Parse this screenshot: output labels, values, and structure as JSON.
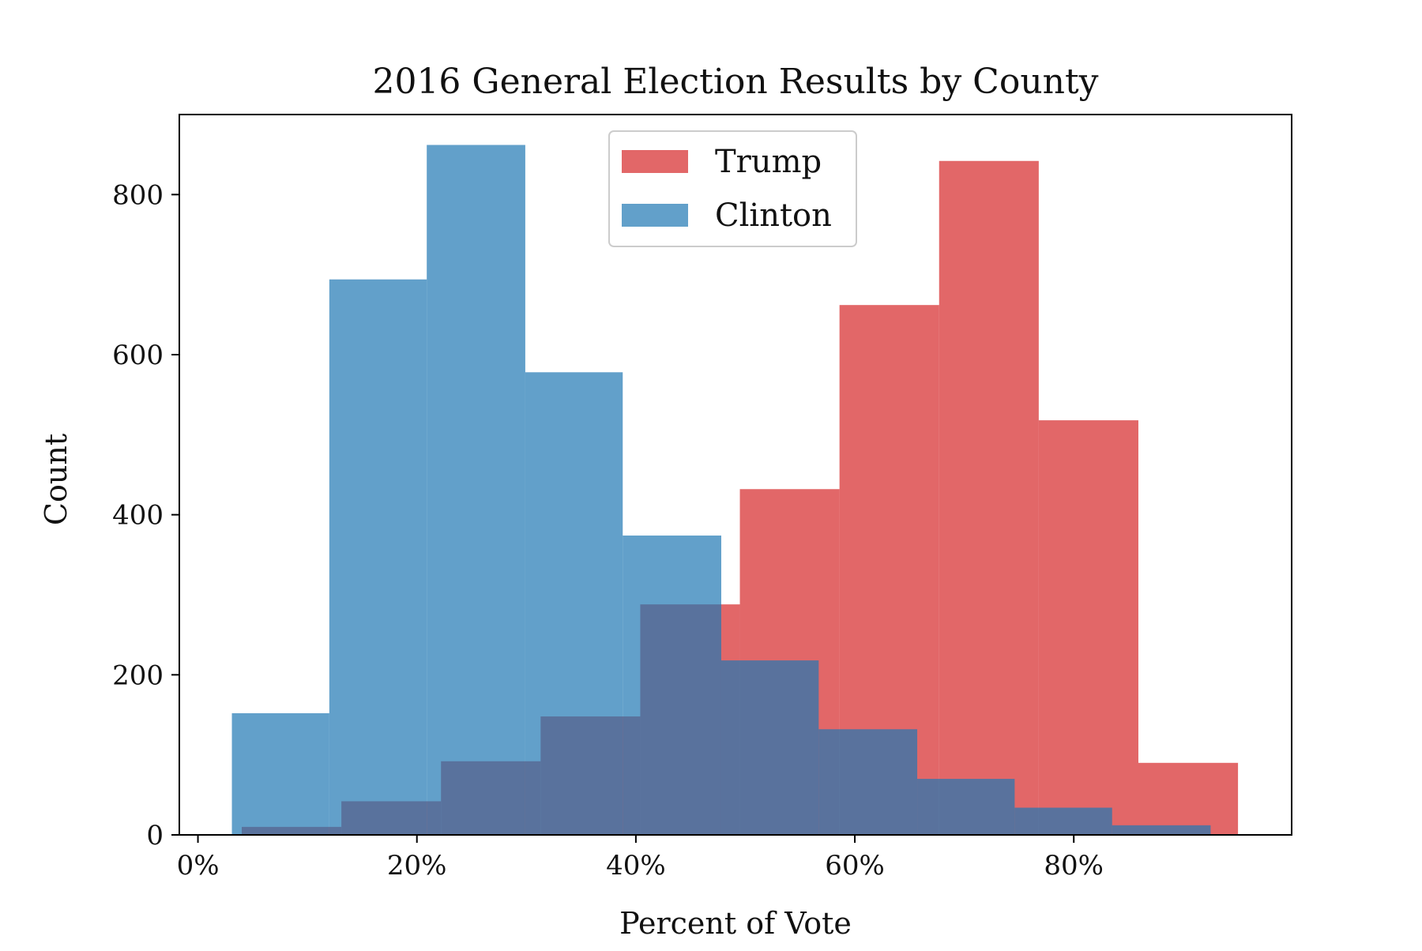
{
  "chart_data": {
    "type": "histogram",
    "title": "2016 General Election Results by County",
    "xlabel": "Percent of Vote",
    "ylabel": "Count",
    "xlim": [
      -0.017,
      0.999
    ],
    "ylim": [
      0,
      900
    ],
    "x_ticks": [
      0,
      0.2,
      0.4,
      0.6,
      0.8
    ],
    "x_tick_labels": [
      "0%",
      "20%",
      "40%",
      "60%",
      "80%"
    ],
    "y_ticks": [
      0,
      200,
      400,
      600,
      800
    ],
    "y_tick_labels": [
      "0",
      "200",
      "400",
      "600",
      "800"
    ],
    "legend": {
      "position": "upper center"
    },
    "series": [
      {
        "name": "Trump",
        "color": "#d62728",
        "opacity": 0.7,
        "bin_edges": [
          0.04,
          0.131,
          0.222,
          0.313,
          0.404,
          0.495,
          0.586,
          0.677,
          0.768,
          0.859,
          0.95
        ],
        "counts": [
          10,
          42,
          92,
          148,
          288,
          432,
          662,
          842,
          518,
          90
        ]
      },
      {
        "name": "Clinton",
        "color": "#1f77b4",
        "opacity": 0.7,
        "bin_edges": [
          0.031,
          0.12,
          0.209,
          0.299,
          0.388,
          0.478,
          0.567,
          0.657,
          0.746,
          0.835,
          0.925
        ],
        "counts": [
          152,
          694,
          862,
          578,
          374,
          218,
          132,
          70,
          34,
          12
        ]
      }
    ]
  }
}
